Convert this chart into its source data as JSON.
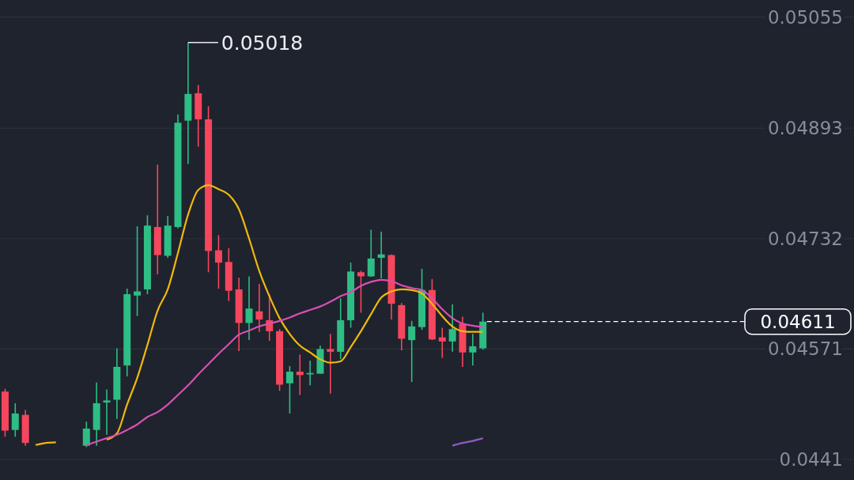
{
  "chart_data": {
    "type": "candlestick",
    "categories": [
      null,
      null,
      null,
      null,
      null,
      null,
      null,
      null,
      null,
      null,
      null,
      null,
      null,
      null,
      null,
      null,
      null,
      null,
      null,
      null,
      null,
      null,
      null,
      null,
      null,
      null,
      null,
      null,
      null,
      null,
      null,
      null,
      null,
      null,
      null,
      null,
      null,
      null,
      null,
      null,
      null,
      null,
      null,
      null,
      null,
      null,
      null,
      null,
      null,
      null,
      null,
      null,
      null,
      null,
      null,
      null,
      null,
      null,
      null,
      null,
      null,
      null,
      null,
      null,
      null,
      null,
      null,
      null,
      null,
      null,
      null,
      null,
      null,
      null,
      null,
      null,
      null,
      null,
      null,
      null,
      null,
      null,
      null,
      null
    ],
    "ohlc": [
      [
        0.04509,
        0.04513,
        0.04443,
        0.04452
      ],
      [
        0.04453,
        0.04492,
        0.04443,
        0.04477
      ],
      [
        0.04475,
        0.04482,
        0.0443,
        0.04434
      ],
      null,
      null,
      null,
      null,
      null,
      [
        0.0443,
        0.04465,
        0.04428,
        0.04455
      ],
      [
        0.04453,
        0.04522,
        0.0443,
        0.04492
      ],
      [
        0.04493,
        0.04512,
        0.04446,
        0.04496
      ],
      [
        0.04497,
        0.04572,
        0.04469,
        0.04545
      ],
      [
        0.04547,
        0.04659,
        0.04531,
        0.04651
      ],
      [
        0.04649,
        0.0475,
        0.04619,
        0.04655
      ],
      [
        0.04658,
        0.04766,
        0.04651,
        0.04751
      ],
      [
        0.04749,
        0.0484,
        0.0468,
        0.04708
      ],
      [
        0.04707,
        0.04765,
        0.04704,
        0.04751
      ],
      [
        0.04749,
        0.04913,
        0.04747,
        0.04901
      ],
      [
        0.04904,
        0.05018,
        0.04841,
        0.04943
      ],
      [
        0.04944,
        0.04956,
        0.04866,
        0.04906
      ],
      [
        0.04906,
        0.04925,
        0.04683,
        0.04714
      ],
      [
        0.04715,
        0.04737,
        0.04659,
        0.04697
      ],
      [
        0.04698,
        0.04718,
        0.04641,
        0.04656
      ],
      [
        0.04658,
        0.04675,
        0.04568,
        0.04609
      ],
      [
        0.04609,
        0.04677,
        0.04584,
        0.0463
      ],
      [
        0.04626,
        0.04666,
        0.04596,
        0.04614
      ],
      [
        0.04613,
        0.04651,
        0.04583,
        0.04597
      ],
      [
        0.04597,
        0.046,
        0.0451,
        0.04519
      ],
      [
        0.04521,
        0.04546,
        0.04477,
        0.04538
      ],
      [
        0.04538,
        0.04563,
        0.04504,
        0.04533
      ],
      [
        0.04534,
        0.04554,
        0.04518,
        0.04536
      ],
      [
        0.04535,
        0.04576,
        0.04535,
        0.04571
      ],
      [
        0.04571,
        0.04593,
        0.04506,
        0.04567
      ],
      [
        0.04567,
        0.04645,
        0.04556,
        0.04613
      ],
      [
        0.04613,
        0.04697,
        0.04602,
        0.04684
      ],
      [
        0.04683,
        0.04685,
        0.04624,
        0.04677
      ],
      [
        0.04677,
        0.04745,
        0.04676,
        0.04703
      ],
      [
        0.04704,
        0.04742,
        0.04674,
        0.04709
      ],
      [
        0.04708,
        0.04709,
        0.04614,
        0.04637
      ],
      [
        0.04635,
        0.04638,
        0.04569,
        0.04586
      ],
      [
        0.04584,
        0.04612,
        0.04523,
        0.04604
      ],
      [
        0.04603,
        0.04688,
        0.04599,
        0.04657
      ],
      [
        0.04657,
        0.04673,
        0.04584,
        0.04585
      ],
      [
        0.04588,
        0.04602,
        0.04558,
        0.04582
      ],
      [
        0.04582,
        0.04636,
        0.04567,
        0.046
      ],
      [
        0.04608,
        0.04618,
        0.04545,
        0.04566
      ],
      [
        0.04566,
        0.04593,
        0.04547,
        0.04575
      ],
      [
        0.04572,
        0.04624,
        0.0457,
        0.04611
      ],
      null,
      null,
      null,
      null,
      null,
      null,
      null,
      null,
      null,
      null,
      null,
      null,
      null,
      null,
      null,
      null,
      null,
      null,
      null,
      null,
      null,
      null,
      null,
      null,
      null,
      null,
      null,
      null,
      null,
      null,
      null,
      null,
      null,
      null,
      null,
      null
    ],
    "series": [
      {
        "type": "line",
        "color": "#f0b90b",
        "values": [
          null,
          null,
          null,
          0.04431,
          0.04434,
          0.04435,
          null,
          null,
          null,
          null,
          0.04439,
          0.04448,
          0.0449,
          0.04529,
          0.04577,
          0.04627,
          0.04658,
          0.04711,
          0.04767,
          0.04803,
          0.0481,
          0.04804,
          0.04796,
          0.04775,
          0.04732,
          0.04685,
          0.04648,
          0.04616,
          0.04593,
          0.04576,
          0.04566,
          0.04556,
          0.04551,
          0.04553,
          0.04574,
          0.04597,
          0.04622,
          0.04646,
          0.04655,
          0.04658,
          0.04657,
          0.04652,
          0.04637,
          0.04619,
          0.04604,
          0.04597,
          0.04596,
          0.04596,
          null,
          null,
          null,
          null,
          null,
          null,
          null,
          null,
          null,
          null,
          null,
          null,
          null,
          null,
          null,
          null,
          null,
          null,
          null,
          null,
          null,
          null,
          null,
          null,
          null,
          null,
          null,
          null,
          null,
          null,
          null,
          null,
          null,
          null,
          null,
          null
        ]
      },
      {
        "type": "line",
        "color": "#d84fb4",
        "values": [
          null,
          null,
          null,
          null,
          null,
          null,
          null,
          null,
          0.04431,
          0.04436,
          0.04441,
          0.04446,
          0.04453,
          0.04461,
          0.04472,
          0.04479,
          0.0449,
          0.04504,
          0.04518,
          0.04534,
          0.04549,
          0.04564,
          0.04578,
          0.04592,
          0.04598,
          0.04604,
          0.04608,
          0.04612,
          0.04617,
          0.04623,
          0.04628,
          0.04633,
          0.0464,
          0.04648,
          0.04654,
          0.04663,
          0.04669,
          0.04672,
          0.0467,
          0.04664,
          0.0466,
          0.04657,
          0.04645,
          0.04629,
          0.04616,
          0.04608,
          0.04605,
          0.04603,
          null,
          null,
          null,
          null,
          null,
          null,
          null,
          null,
          null,
          null,
          null,
          null,
          null,
          null,
          null,
          null,
          null,
          null,
          null,
          null,
          null,
          null,
          null,
          null,
          null,
          null,
          null,
          null,
          null,
          null,
          null,
          null,
          null,
          null,
          null,
          null
        ]
      },
      {
        "type": "line",
        "color": "#8e5ac8",
        "values": [
          null,
          null,
          null,
          null,
          null,
          null,
          null,
          null,
          null,
          null,
          null,
          null,
          null,
          null,
          null,
          null,
          null,
          null,
          null,
          null,
          null,
          null,
          null,
          null,
          null,
          null,
          null,
          null,
          null,
          null,
          null,
          null,
          null,
          null,
          null,
          null,
          null,
          null,
          null,
          null,
          null,
          null,
          null,
          null,
          0.0443,
          0.04434,
          0.04437,
          0.04441,
          null,
          null,
          null,
          null,
          null,
          null,
          null,
          null,
          null,
          null,
          null,
          null,
          null,
          null,
          null,
          null,
          null,
          null,
          null,
          null,
          null,
          null,
          null,
          null,
          null,
          null,
          null,
          null,
          null,
          null,
          null,
          null,
          null,
          null,
          null,
          null
        ]
      }
    ],
    "ylim": [
      0.0438,
      0.0508
    ],
    "yticks": [
      0.0441,
      0.04571,
      0.04732,
      0.04893,
      0.05055
    ],
    "grid": "y",
    "tick_labels": "y",
    "annotations": [
      "0.05018"
    ],
    "ref_lines": [
      {
        "axis": "y",
        "value": 0.04611,
        "label": "0.04611",
        "line_style": "dashed",
        "color": "#ffffff"
      }
    ]
  }
}
